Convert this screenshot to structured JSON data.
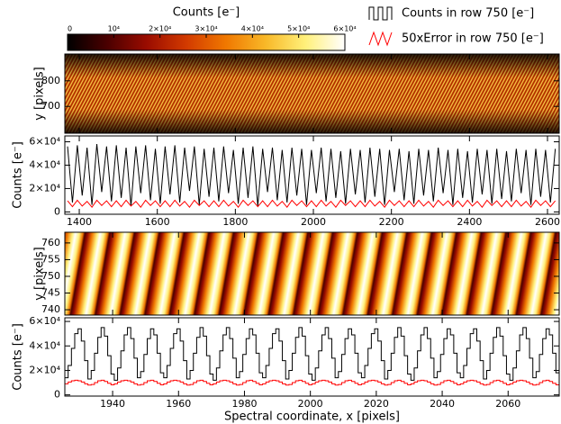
{
  "chart_data": [
    {
      "type": "heatmap",
      "ylabel": "y [pixels]",
      "ylim": [
        595,
        905
      ],
      "yticks": [
        700,
        800
      ],
      "colorbar": {
        "label": "Counts [e⁻]",
        "lim": [
          0,
          60000
        ],
        "ticks": [
          0,
          {
            "value": 10000,
            "label": "10⁴"
          },
          {
            "value": 20000,
            "label": "2×10⁴"
          },
          {
            "value": 30000,
            "label": "3×10⁴"
          },
          {
            "value": 40000,
            "label": "4×10⁴"
          },
          {
            "value": 50000,
            "label": "5×10⁴"
          },
          {
            "value": 60000,
            "label": "6×10⁴"
          }
        ],
        "colormap": [
          "#000000",
          "#4a0000",
          "#9a0c00",
          "#d23a00",
          "#f07800",
          "#f8b828",
          "#fff07a",
          "#ffffff"
        ]
      }
    },
    {
      "type": "line",
      "ylabel": "Counts [e⁻]",
      "xlim": [
        1363,
        2630
      ],
      "ylim": [
        -2000,
        65000
      ],
      "xticks": [
        1400,
        1600,
        1800,
        2000,
        2200,
        2400,
        2600
      ],
      "yticks": [
        0,
        {
          "value": 20000,
          "label": "2×10⁴"
        },
        {
          "value": 40000,
          "label": "4×10⁴"
        },
        {
          "value": 60000,
          "label": "6×10⁴"
        }
      ],
      "x": [
        1370,
        1382.5,
        1395,
        1407.5,
        1420,
        1432.5,
        1445,
        1457.5,
        1470,
        1482.5,
        1495,
        1507.5,
        1520,
        1532.5,
        1545,
        1557.5,
        1570,
        1582.5,
        1595,
        1607.5,
        1620,
        1632.5,
        1645,
        1657.5,
        1670,
        1682.5,
        1695,
        1707.5,
        1720,
        1732.5,
        1745,
        1757.5,
        1770,
        1782.5,
        1795,
        1807.5,
        1820,
        1832.5,
        1845,
        1857.5,
        1870,
        1882.5,
        1895,
        1907.5,
        1920,
        1932.5,
        1945,
        1957.5,
        1970,
        1982.5,
        1995,
        2007.5,
        2020,
        2032.5,
        2045,
        2057.5,
        2070,
        2082.5,
        2095,
        2107.5,
        2120,
        2132.5,
        2145,
        2157.5,
        2170,
        2182.5,
        2195,
        2207.5,
        2220,
        2232.5,
        2245,
        2257.5,
        2270,
        2282.5,
        2295,
        2307.5,
        2320,
        2332.5,
        2345,
        2357.5,
        2370,
        2382.5,
        2395,
        2407.5,
        2420,
        2432.5,
        2445,
        2457.5,
        2470,
        2482.5,
        2495,
        2507.5,
        2520,
        2532.5,
        2545,
        2557.5,
        2570,
        2582.5,
        2595,
        2607.5,
        2620
      ],
      "series": [
        {
          "name": "Counts in row 750 [e⁻]",
          "color": "#000000",
          "values": [
            56000,
            8000,
            57000,
            14000,
            55000,
            6000,
            58000,
            17000,
            56000,
            9000,
            57000,
            12000,
            55000,
            5000,
            56000,
            16000,
            57000,
            10000,
            54000,
            7000,
            56000,
            15000,
            57000,
            8000,
            55000,
            18000,
            56000,
            6000,
            54000,
            13000,
            55000,
            9000,
            56000,
            16000,
            53000,
            7000,
            55000,
            12000,
            56000,
            5000,
            54000,
            17000,
            55000,
            10000,
            53000,
            8000,
            55000,
            14000,
            54000,
            6000,
            53000,
            16000,
            55000,
            9000,
            54000,
            12000,
            52000,
            7000,
            54000,
            15000,
            53000,
            8000,
            55000,
            13000,
            54000,
            6000,
            53000,
            17000,
            54000,
            10000,
            52000,
            7000,
            54000,
            14000,
            53000,
            9000,
            55000,
            16000,
            53000,
            6000,
            54000,
            12000,
            52000,
            8000,
            54000,
            15000,
            53000,
            7000,
            54000,
            11000,
            52000,
            9000,
            54000,
            16000,
            53000,
            6000,
            54000,
            13000,
            53000,
            8000,
            54000
          ]
        },
        {
          "name": "50xError in row 750 [e⁻]",
          "color": "#ff0000",
          "values": [
            9500,
            4500,
            10000,
            5000,
            9000,
            4000,
            10000,
            5500,
            9500,
            4500,
            9500,
            4500,
            10000,
            5000,
            9000,
            4000,
            10000,
            5500,
            9500,
            4500,
            9500,
            4500,
            10000,
            5000,
            9000,
            4000,
            10000,
            5500,
            9500,
            4500,
            9500,
            4500,
            10000,
            5000,
            9000,
            4000,
            10000,
            5500,
            9500,
            4500,
            9500,
            4500,
            10000,
            5000,
            9000,
            4000,
            10000,
            5500,
            9500,
            4500,
            9500,
            4500,
            10000,
            5000,
            9000,
            4000,
            10000,
            5500,
            9500,
            4500,
            9500,
            4500,
            10000,
            5000,
            9000,
            4000,
            10000,
            5500,
            9500,
            4500,
            9500,
            4500,
            10000,
            5000,
            9000,
            4000,
            10000,
            5500,
            9500,
            4500,
            9500,
            4500,
            10000,
            5000,
            9000,
            4000,
            10000,
            5500,
            9500,
            4500,
            9500,
            4500,
            10000,
            5000,
            9000,
            4000,
            10000,
            5500,
            9500,
            4500,
            9500
          ]
        }
      ]
    },
    {
      "type": "heatmap",
      "ylabel": "y [pixels]",
      "ylim": [
        738.4,
        763.2
      ],
      "yticks": [
        740,
        745,
        750,
        755,
        760
      ]
    },
    {
      "type": "step",
      "ylabel": "Counts [e⁻]",
      "xlabel": "Spectral coordinate, x [pixels]",
      "xlim": [
        1925.5,
        2075.5
      ],
      "ylim": [
        -1000,
        63000
      ],
      "xticks": [
        1940,
        1960,
        1980,
        2000,
        2020,
        2040,
        2060
      ],
      "yticks": [
        0,
        {
          "value": 20000,
          "label": "2×10⁴"
        },
        {
          "value": 40000,
          "label": "4×10⁴"
        },
        {
          "value": 60000,
          "label": "6×10⁴"
        }
      ],
      "x": [
        1926,
        1927,
        1928,
        1929,
        1930,
        1931,
        1932,
        1933,
        1934,
        1935,
        1936,
        1937,
        1938,
        1939,
        1940,
        1941,
        1942,
        1943,
        1944,
        1945,
        1946,
        1947,
        1948,
        1949,
        1950,
        1951,
        1952,
        1953,
        1954,
        1955,
        1956,
        1957,
        1958,
        1959,
        1960,
        1961,
        1962,
        1963,
        1964,
        1965,
        1966,
        1967,
        1968,
        1969,
        1970,
        1971,
        1972,
        1973,
        1974,
        1975,
        1976,
        1977,
        1978,
        1979,
        1980,
        1981,
        1982,
        1983,
        1984,
        1985,
        1986,
        1987,
        1988,
        1989,
        1990,
        1991,
        1992,
        1993,
        1994,
        1995,
        1996,
        1997,
        1998,
        1999,
        2000,
        2001,
        2002,
        2003,
        2004,
        2005,
        2006,
        2007,
        2008,
        2009,
        2010,
        2011,
        2012,
        2013,
        2014,
        2015,
        2016,
        2017,
        2018,
        2019,
        2020,
        2021,
        2022,
        2023,
        2024,
        2025,
        2026,
        2027,
        2028,
        2029,
        2030,
        2031,
        2032,
        2033,
        2034,
        2035,
        2036,
        2037,
        2038,
        2039,
        2040,
        2041,
        2042,
        2043,
        2044,
        2045,
        2046,
        2047,
        2048,
        2049,
        2050,
        2051,
        2052,
        2053,
        2054,
        2055,
        2056,
        2057,
        2058,
        2059,
        2060,
        2061,
        2062,
        2063,
        2064,
        2065,
        2066,
        2067,
        2068,
        2069,
        2070,
        2071,
        2072,
        2073,
        2074,
        2075
      ],
      "series": [
        {
          "color": "#000000",
          "values": [
            14000,
            24000,
            38000,
            50000,
            54000,
            44000,
            28000,
            13000,
            20000,
            34000,
            47000,
            55000,
            48000,
            32000,
            17000,
            12000,
            22000,
            36000,
            49000,
            55000,
            46000,
            30000,
            14000,
            19000,
            33000,
            46000,
            54000,
            49000,
            34000,
            18000,
            14000,
            24000,
            38000,
            50000,
            54000,
            44000,
            28000,
            13000,
            20000,
            34000,
            47000,
            55000,
            48000,
            32000,
            17000,
            12000,
            22000,
            36000,
            49000,
            55000,
            46000,
            30000,
            14000,
            19000,
            33000,
            46000,
            54000,
            49000,
            34000,
            18000,
            14000,
            24000,
            38000,
            50000,
            54000,
            44000,
            28000,
            13000,
            20000,
            34000,
            47000,
            55000,
            48000,
            32000,
            17000,
            12000,
            22000,
            36000,
            49000,
            55000,
            46000,
            30000,
            14000,
            19000,
            33000,
            46000,
            54000,
            49000,
            34000,
            18000,
            14000,
            24000,
            38000,
            50000,
            54000,
            44000,
            28000,
            13000,
            20000,
            34000,
            47000,
            55000,
            48000,
            32000,
            17000,
            12000,
            22000,
            36000,
            49000,
            55000,
            46000,
            30000,
            14000,
            19000,
            33000,
            46000,
            54000,
            49000,
            34000,
            18000,
            14000,
            24000,
            38000,
            50000,
            54000,
            44000,
            28000,
            13000,
            20000,
            34000,
            47000,
            55000,
            48000,
            32000,
            17000,
            12000,
            22000,
            36000,
            49000,
            55000,
            46000,
            30000,
            14000,
            19000,
            33000,
            46000,
            54000,
            49000,
            34000,
            18000
          ]
        },
        {
          "color": "#ff0000",
          "values": [
            9000,
            10500,
            11500,
            12000,
            11500,
            10500,
            9000,
            8000,
            8500,
            10000,
            11500,
            12000,
            11000,
            9500,
            8200,
            9000,
            10500,
            11500,
            12000,
            11500,
            10500,
            9000,
            8000,
            8500,
            10000,
            11500,
            12000,
            11000,
            9500,
            8200,
            9000,
            10500,
            11500,
            12000,
            11500,
            10500,
            9000,
            8000,
            8500,
            10000,
            11500,
            12000,
            11000,
            9500,
            8200,
            9000,
            10500,
            11500,
            12000,
            11500,
            10500,
            9000,
            8000,
            8500,
            10000,
            11500,
            12000,
            11000,
            9500,
            8200,
            9000,
            10500,
            11500,
            12000,
            11500,
            10500,
            9000,
            8000,
            8500,
            10000,
            11500,
            12000,
            11000,
            9500,
            8200,
            9000,
            10500,
            11500,
            12000,
            11500,
            10500,
            9000,
            8000,
            8500,
            10000,
            11500,
            12000,
            11000,
            9500,
            8200,
            9000,
            10500,
            11500,
            12000,
            11500,
            10500,
            9000,
            8000,
            8500,
            10000,
            11500,
            12000,
            11000,
            9500,
            8200,
            9000,
            10500,
            11500,
            12000,
            11500,
            10500,
            9000,
            8000,
            8500,
            10000,
            11500,
            12000,
            11000,
            9500,
            8200,
            9000,
            10500,
            11500,
            12000,
            11500,
            10500,
            9000,
            8000,
            8500,
            10000,
            11500,
            12000,
            11000,
            9500,
            8200,
            9000,
            10500,
            11500,
            12000,
            11500,
            10500,
            9000,
            8000,
            8500,
            10000,
            11500,
            12000,
            11000,
            9500,
            8200
          ]
        }
      ]
    }
  ]
}
